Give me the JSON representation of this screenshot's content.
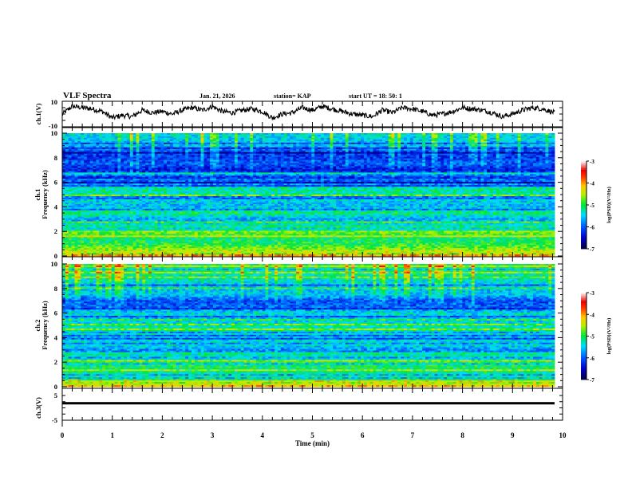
{
  "header": {
    "title": "VLF Spectra",
    "date": "Jan. 21, 2026",
    "station": "station= KAP",
    "start_ut": "start  UT =   18: 50: 1"
  },
  "colors": {
    "trace": "#000000",
    "frame": "#000000",
    "background": "#ffffff"
  },
  "chart_data": [
    {
      "type": "line",
      "name": "ch1-waveform",
      "ylabel": "ch.1(V)",
      "ylim": [
        -10,
        10
      ],
      "yticks": [
        "10",
        "-10"
      ],
      "xlim": [
        0,
        10
      ],
      "data_end_min": 9.84,
      "x": [
        0,
        0.2,
        0.4,
        0.6,
        0.8,
        1.0,
        1.2,
        1.4,
        1.6,
        1.8,
        2.0,
        2.2,
        2.4,
        2.6,
        2.8,
        3.0,
        3.2,
        3.4,
        3.6,
        3.8,
        4.0,
        4.2,
        4.4,
        4.6,
        4.8,
        5.0,
        5.2,
        5.4,
        5.6,
        5.8,
        6.0,
        6.2,
        6.4,
        6.6,
        6.8,
        7.0,
        7.2,
        7.4,
        7.6,
        7.8,
        8.0,
        8.2,
        8.4,
        8.6,
        8.8,
        9.0,
        9.2,
        9.4,
        9.6,
        9.84
      ],
      "values": [
        0,
        6,
        5,
        4,
        2,
        -3,
        -1,
        -2,
        3,
        1,
        2,
        0,
        3,
        5,
        3,
        6,
        2,
        1,
        3,
        4,
        2,
        -3,
        0,
        1,
        5,
        3,
        6,
        4,
        2,
        0,
        -1,
        -2,
        3,
        1,
        5,
        4,
        2,
        -1,
        0,
        2,
        5,
        4,
        3,
        1,
        -2,
        0,
        3,
        5,
        4,
        1
      ]
    },
    {
      "type": "heatmap",
      "name": "ch1-spectrogram",
      "ylabel": "ch.1 Frequency (kHz)",
      "xlim": [
        0,
        10
      ],
      "ylim": [
        0,
        10
      ],
      "yticks": [
        "0",
        "2",
        "4",
        "6",
        "8",
        "10"
      ],
      "data_end_min": 9.84,
      "colorbar": {
        "label": "log(PSD)(V²/Hz)",
        "range": [
          -7,
          -3
        ],
        "ticks": [
          "-3",
          "-4",
          "-5",
          "-6",
          "-7"
        ]
      },
      "band_profile_khz": [
        0.0,
        0.5,
        1.0,
        1.5,
        2.0,
        2.5,
        3.0,
        3.5,
        4.0,
        4.5,
        5.0,
        5.5,
        6.0,
        6.5,
        7.0,
        7.5,
        8.0,
        8.5,
        9.0,
        9.5,
        10.0
      ],
      "band_profile_log_psd": [
        -3.9,
        -4.6,
        -5.0,
        -5.1,
        -4.6,
        -5.3,
        -5.7,
        -5.1,
        -5.6,
        -5.5,
        -5.3,
        -5.2,
        -6.1,
        -5.6,
        -6.4,
        -6.0,
        -6.2,
        -6.1,
        -5.6,
        -5.5,
        -5.4
      ]
    },
    {
      "type": "heatmap",
      "name": "ch2-spectrogram",
      "ylabel": "ch.2 Frequency (kHz)",
      "xlim": [
        0,
        10
      ],
      "ylim": [
        0,
        10
      ],
      "yticks": [
        "0",
        "2",
        "4",
        "6",
        "8",
        "10"
      ],
      "data_end_min": 9.84,
      "colorbar": {
        "label": "log(PSD)(V²/Hz)",
        "range": [
          -7,
          -3
        ],
        "ticks": [
          "-3",
          "-4",
          "-5",
          "-6",
          "-7"
        ]
      },
      "band_profile_khz": [
        0.0,
        0.5,
        1.0,
        1.5,
        2.0,
        2.5,
        3.0,
        3.5,
        4.0,
        4.5,
        5.0,
        5.5,
        6.0,
        6.5,
        7.0,
        7.5,
        8.0,
        8.5,
        9.0,
        9.5,
        10.0
      ],
      "band_profile_log_psd": [
        -4.0,
        -5.0,
        -5.2,
        -5.1,
        -5.0,
        -5.9,
        -5.8,
        -5.3,
        -5.6,
        -5.2,
        -5.3,
        -5.6,
        -5.4,
        -6.0,
        -6.1,
        -5.5,
        -5.6,
        -5.4,
        -5.3,
        -5.1,
        -5.0
      ]
    },
    {
      "type": "line",
      "name": "ch3-waveform",
      "ylabel": "ch.3(V)",
      "ylim": [
        -5,
        5
      ],
      "yticks": [
        "5",
        "-5"
      ],
      "xlim": [
        0,
        10
      ],
      "data_end_min": 9.84,
      "band_center": 2.0,
      "band_halfwidth": 0.35
    }
  ],
  "xaxis": {
    "label": "Time  (min)",
    "ticks": [
      "0",
      "1",
      "2",
      "3",
      "4",
      "5",
      "6",
      "7",
      "8",
      "9",
      "10"
    ]
  }
}
